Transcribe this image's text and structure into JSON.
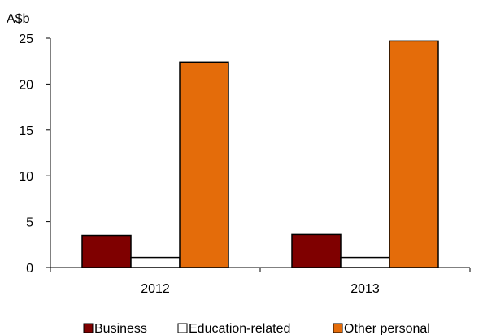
{
  "chart_data": {
    "type": "bar",
    "ylabel": "A$b",
    "categories": [
      "2012",
      "2013"
    ],
    "ylim": [
      0,
      25
    ],
    "yticks": [
      "0",
      "5",
      "10",
      "15",
      "20",
      "25"
    ],
    "grid": false,
    "legend_position": "bottom",
    "series": [
      {
        "name": "Business",
        "color": "#7f0000",
        "values": [
          3.5,
          3.6
        ]
      },
      {
        "name": "Education-related",
        "color": "#ffffff",
        "values": [
          1.1,
          1.1
        ]
      },
      {
        "name": "Other personal",
        "color": "#e46c0a",
        "values": [
          22.4,
          24.7
        ]
      }
    ]
  }
}
